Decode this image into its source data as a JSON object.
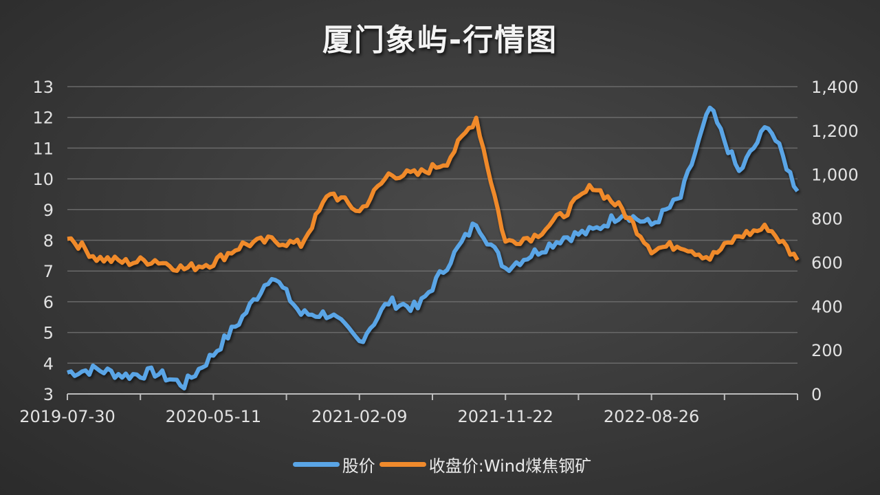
{
  "title": "厦门象屿-行情图",
  "colors": {
    "stock": "#5aa5e6",
    "index": "#f08a2c",
    "grid": "#6a6a6a",
    "axis": "#bdbdbd"
  },
  "legend": [
    {
      "label": "股价",
      "color": "#5aa5e6"
    },
    {
      "label": "收盘价:Wind煤焦钢矿",
      "color": "#f08a2c"
    }
  ],
  "axes": {
    "left_ticks": [
      "13",
      "12",
      "11",
      "10",
      "9",
      "8",
      "7",
      "6",
      "5",
      "4",
      "3"
    ],
    "right_ticks": [
      "1,400",
      "1,200",
      "1,000",
      "800",
      "600",
      "400",
      "200",
      "0"
    ],
    "x_labels": [
      "2019-07-30",
      "2020-05-11",
      "2021-02-09",
      "2021-11-22",
      "2022-08-26"
    ]
  },
  "chart_data": {
    "type": "line",
    "title": "厦门象屿-行情图",
    "xlabel": "",
    "ylabel_left": "股价",
    "ylabel_right": "收盘价:Wind煤焦钢矿",
    "ylim_left": [
      3,
      13
    ],
    "ylim_right": [
      0,
      1400
    ],
    "x_tick_labels": [
      "2019-07-30",
      "2020-05-11",
      "2021-02-09",
      "2021-11-22",
      "2022-08-26"
    ],
    "grid": true,
    "legend_position": "bottom",
    "x": [
      "2019-07",
      "2019-09",
      "2019-11",
      "2020-01",
      "2020-03",
      "2020-05",
      "2020-07",
      "2020-08",
      "2020-10",
      "2020-12",
      "2021-02",
      "2021-04",
      "2021-06",
      "2021-08",
      "2021-10",
      "2021-11",
      "2022-01",
      "2022-03",
      "2022-05",
      "2022-07",
      "2022-09",
      "2022-11",
      "2023-01",
      "2023-03",
      "2023-05",
      "2023-06"
    ],
    "series": [
      {
        "name": "股价",
        "axis": "left",
        "values": [
          3.7,
          3.8,
          3.6,
          3.7,
          3.3,
          4.3,
          5.5,
          6.9,
          5.6,
          5.6,
          4.7,
          6.0,
          5.8,
          7.2,
          8.6,
          7.1,
          7.6,
          8.1,
          8.3,
          8.9,
          8.5,
          9.4,
          12.3,
          10.2,
          11.8,
          9.6
        ]
      },
      {
        "name": "收盘价:Wind煤焦钢矿",
        "axis": "right",
        "values": [
          720,
          620,
          600,
          610,
          570,
          600,
          680,
          700,
          680,
          920,
          830,
          1000,
          1000,
          1060,
          1260,
          690,
          720,
          820,
          950,
          840,
          660,
          680,
          620,
          720,
          760,
          610
        ]
      }
    ]
  }
}
